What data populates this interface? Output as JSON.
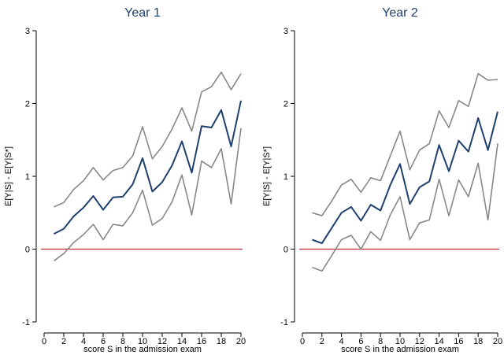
{
  "chart_data": [
    {
      "type": "line",
      "title": "Year 1",
      "xlabel": "score S in the admission exam",
      "ylabel": "E[Y|S] - E[Y|S*]",
      "xlim": [
        0,
        20
      ],
      "ylim": [
        -1,
        3
      ],
      "xticks": [
        0,
        2,
        4,
        6,
        8,
        10,
        12,
        14,
        16,
        18,
        20
      ],
      "yticks": [
        -1,
        0,
        1,
        2,
        3
      ],
      "reference_line": {
        "y": 0,
        "color": "#c1272d"
      },
      "grid": false,
      "x": [
        1,
        2,
        3,
        4,
        5,
        6,
        7,
        8,
        9,
        10,
        11,
        12,
        13,
        14,
        15,
        16,
        17,
        18,
        19,
        20
      ],
      "series": [
        {
          "color": "#888888",
          "values": [
            0.58,
            0.64,
            0.82,
            0.94,
            1.12,
            0.95,
            1.08,
            1.12,
            1.28,
            1.68,
            1.24,
            1.41,
            1.65,
            1.94,
            1.62,
            2.16,
            2.23,
            2.43,
            2.19,
            2.41
          ]
        },
        {
          "color": "#1f3f6e",
          "values": [
            0.21,
            0.28,
            0.45,
            0.57,
            0.73,
            0.54,
            0.71,
            0.72,
            0.89,
            1.25,
            0.79,
            0.92,
            1.15,
            1.48,
            1.05,
            1.69,
            1.67,
            1.91,
            1.41,
            2.04
          ]
        },
        {
          "color": "#888888",
          "values": [
            -0.16,
            -0.06,
            0.09,
            0.2,
            0.34,
            0.13,
            0.34,
            0.32,
            0.5,
            0.81,
            0.33,
            0.42,
            0.65,
            1.02,
            0.47,
            1.21,
            1.12,
            1.38,
            0.62,
            1.66
          ]
        }
      ]
    },
    {
      "type": "line",
      "title": "Year 2",
      "xlabel": "score S in the admission exam",
      "ylabel": "E[Y|S] - E[Y|S*]",
      "xlim": [
        0,
        20
      ],
      "ylim": [
        -1,
        3
      ],
      "xticks": [
        0,
        2,
        4,
        6,
        8,
        10,
        12,
        14,
        16,
        18,
        20
      ],
      "yticks": [
        -1,
        0,
        1,
        2,
        3
      ],
      "reference_line": {
        "y": 0,
        "color": "#c1272d"
      },
      "grid": false,
      "x": [
        1,
        2,
        3,
        4,
        5,
        6,
        7,
        8,
        9,
        10,
        11,
        12,
        13,
        14,
        15,
        16,
        17,
        18,
        19,
        20
      ],
      "series": [
        {
          "color": "#888888",
          "values": [
            0.5,
            0.46,
            0.66,
            0.88,
            0.96,
            0.78,
            0.98,
            0.94,
            1.28,
            1.62,
            1.09,
            1.36,
            1.45,
            1.9,
            1.67,
            2.04,
            1.96,
            2.41,
            2.32,
            2.33
          ]
        },
        {
          "color": "#1f3f6e",
          "values": [
            0.13,
            0.08,
            0.29,
            0.5,
            0.58,
            0.39,
            0.61,
            0.53,
            0.88,
            1.17,
            0.62,
            0.85,
            0.93,
            1.43,
            1.07,
            1.49,
            1.34,
            1.8,
            1.36,
            1.89
          ]
        },
        {
          "color": "#888888",
          "values": [
            -0.25,
            -0.3,
            -0.09,
            0.13,
            0.19,
            0.0,
            0.24,
            0.12,
            0.47,
            0.72,
            0.13,
            0.36,
            0.4,
            0.96,
            0.46,
            0.95,
            0.72,
            1.18,
            0.4,
            1.45
          ]
        }
      ]
    }
  ]
}
